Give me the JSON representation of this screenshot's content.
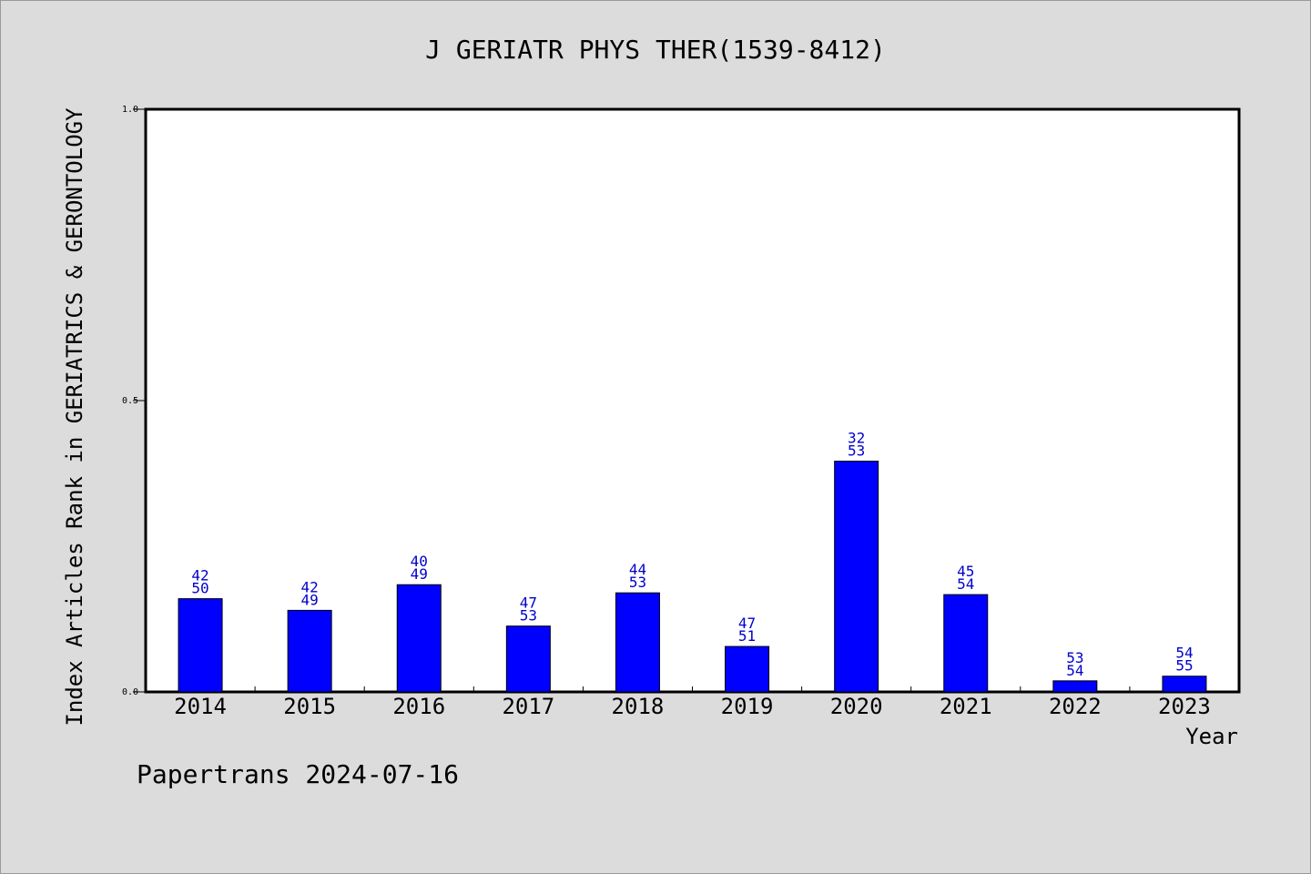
{
  "footer": "Papertrans 2024-07-16",
  "colors": {
    "bar": "#0000ff",
    "label": "#0000cc",
    "background": "#dcdcdc",
    "plot": "#ffffff"
  },
  "chart_data": {
    "type": "bar",
    "title": "J GERIATR PHYS THER(1539-8412)",
    "xlabel": "Year",
    "ylabel": "Index Articles Rank in GERIATRICS & GERONTOLOGY",
    "ylim": [
      0,
      1
    ],
    "yticks": [
      "0.0",
      "0.5",
      "1.0"
    ],
    "yticks_values": [
      0,
      0.5,
      1.0
    ],
    "grid": false,
    "categories": [
      "2014",
      "2015",
      "2016",
      "2017",
      "2018",
      "2019",
      "2020",
      "2021",
      "2022",
      "2023"
    ],
    "values": [
      0.16,
      0.14,
      0.184,
      0.113,
      0.17,
      0.078,
      0.396,
      0.167,
      0.019,
      0.027
    ],
    "labels_top": [
      "42",
      "42",
      "40",
      "47",
      "44",
      "47",
      "32",
      "45",
      "53",
      "54"
    ],
    "labels_bottom": [
      "50",
      "49",
      "49",
      "53",
      "53",
      "51",
      "53",
      "54",
      "54",
      "55"
    ]
  }
}
